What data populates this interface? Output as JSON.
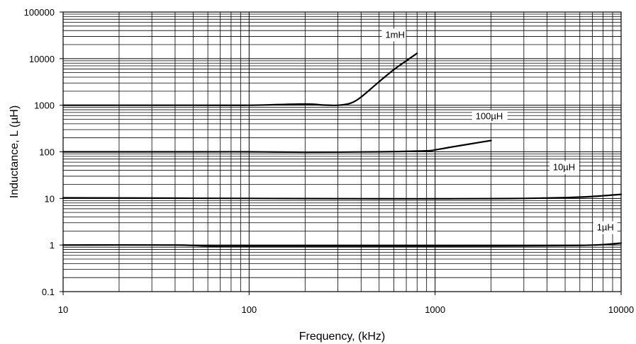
{
  "chart_data": {
    "type": "line",
    "title": "",
    "xlabel": "Frequency, (kHz)",
    "ylabel": "Inductance, L (µH)",
    "x_scale": "log",
    "y_scale": "log",
    "xlim": [
      10,
      10000
    ],
    "ylim": [
      0.1,
      100000
    ],
    "grid": true,
    "x_ticks": [
      {
        "value": 10,
        "label": "10"
      },
      {
        "value": 100,
        "label": "100"
      },
      {
        "value": 1000,
        "label": "1000"
      },
      {
        "value": 10000,
        "label": "10000"
      }
    ],
    "y_ticks": [
      {
        "value": 0.1,
        "label": "0.1"
      },
      {
        "value": 1,
        "label": "1"
      },
      {
        "value": 10,
        "label": "10"
      },
      {
        "value": 100,
        "label": "100"
      },
      {
        "value": 1000,
        "label": "1000"
      },
      {
        "value": 10000,
        "label": "10000"
      },
      {
        "value": 100000,
        "label": "100000"
      }
    ],
    "series": [
      {
        "name": "1mH",
        "x": [
          10,
          50,
          100,
          200,
          250,
          300,
          350,
          400,
          500,
          600,
          700,
          800
        ],
        "y": [
          1000,
          1000,
          1000,
          1060,
          1010,
          1000,
          1100,
          1500,
          3200,
          5800,
          9000,
          13000
        ]
      },
      {
        "name": "100µH",
        "x": [
          10,
          50,
          100,
          200,
          500,
          900,
          1000,
          1200,
          1500,
          2000
        ],
        "y": [
          100,
          100,
          100,
          98,
          100,
          105,
          110,
          125,
          145,
          175
        ]
      },
      {
        "name": "10µH",
        "x": [
          10,
          50,
          100,
          500,
          1000,
          2000,
          3000,
          5000,
          7000,
          10000
        ],
        "y": [
          10.3,
          10.1,
          10,
          9.8,
          9.8,
          9.9,
          10,
          10.4,
          11,
          12.2
        ]
      },
      {
        "name": "1µH",
        "x": [
          10,
          40,
          60,
          100,
          500,
          1000,
          3000,
          6000,
          8000,
          10000
        ],
        "y": [
          1,
          1,
          0.95,
          0.95,
          0.95,
          0.95,
          0.96,
          0.98,
          1.02,
          1.1
        ]
      }
    ]
  }
}
